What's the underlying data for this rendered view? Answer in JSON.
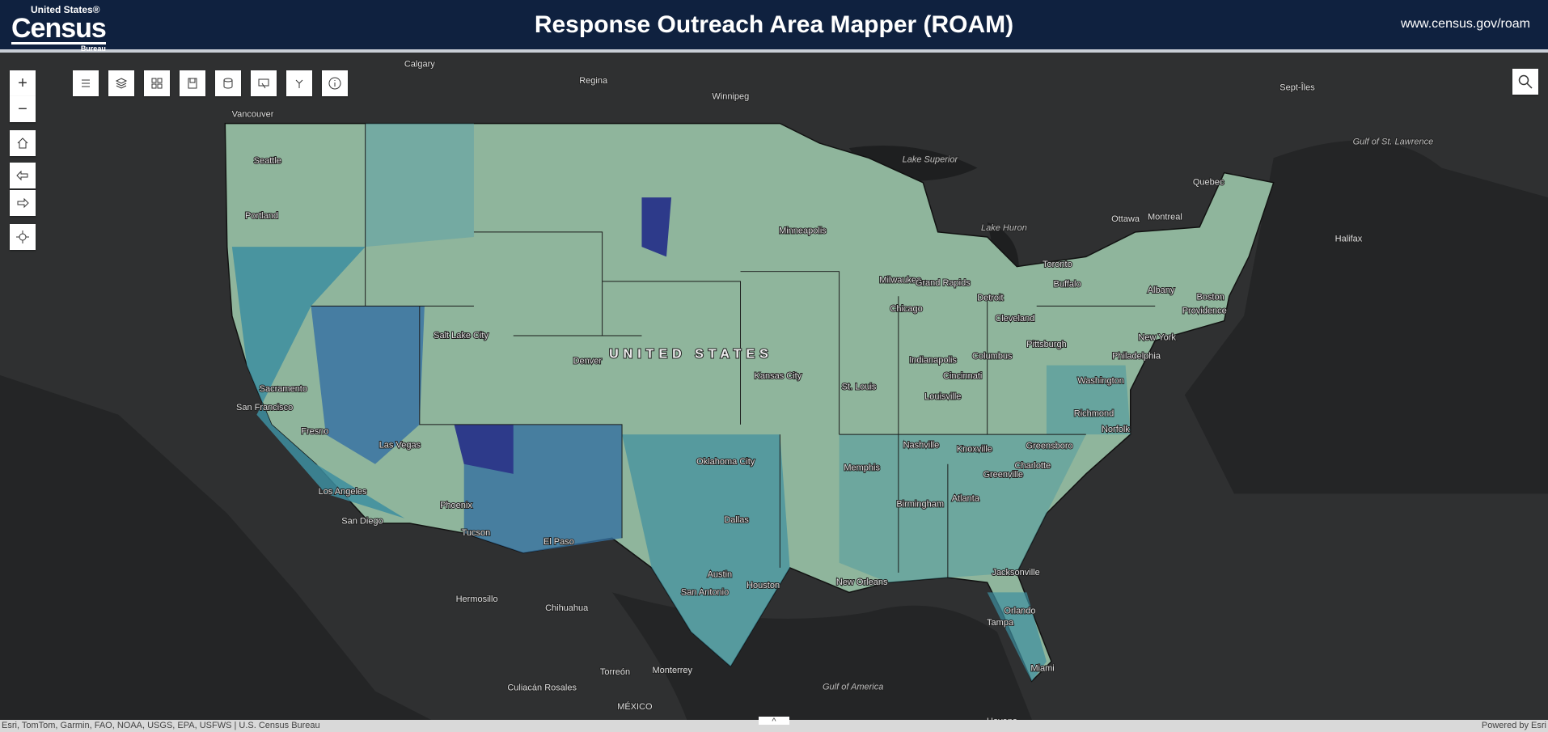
{
  "header": {
    "logo_top": "United States®",
    "logo_main": "Census",
    "logo_bottom": "Bureau",
    "title": "Response Outreach Area Mapper (ROAM)",
    "url": "www.census.gov/roam"
  },
  "controls": {
    "zoom_in": "+",
    "zoom_out": "−"
  },
  "map_labels": [
    "Calgary",
    "Regina",
    "Winnipeg",
    "Vancouver",
    "Seattle",
    "Portland",
    "Sept-Îles",
    "Gulf of St. Lawrence",
    "Lake Superior",
    "Quebec",
    "Ottawa",
    "Montreal",
    "Halifax",
    "Minneapolis",
    "Lake Huron",
    "Toronto",
    "Buffalo",
    "Albany",
    "Boston",
    "Providence",
    "Milwaukee",
    "Grand Rapids",
    "Detroit",
    "Chicago",
    "Cleveland",
    "Salt Lake City",
    "UNITED STATES",
    "New York",
    "Pittsburgh",
    "Philadelphia",
    "Columbus",
    "Indianapolis",
    "Denver",
    "Kansas City",
    "Cincinnati",
    "Washington",
    "Sacramento",
    "St. Louis",
    "Louisville",
    "San Francisco",
    "Richmond",
    "Norfolk",
    "Fresno",
    "Nashville",
    "Knoxville",
    "Greensboro",
    "Las Vegas",
    "Oklahoma City",
    "Memphis",
    "Charlotte",
    "Greenville",
    "Los Angeles",
    "Birmingham",
    "Atlanta",
    "Phoenix",
    "Dallas",
    "San Diego",
    "Tucson",
    "El Paso",
    "Jacksonville",
    "Austin",
    "San Antonio",
    "Houston",
    "New Orleans",
    "Hermosillo",
    "Chihuahua",
    "Tampa",
    "Orlando",
    "Miami",
    "Monterrey",
    "Torreón",
    "Culiacán Rosales",
    "Gulf of America",
    "MÉXICO",
    "Havana"
  ],
  "footer": {
    "attribution": "Esri, TomTom, Garmin, FAO, NOAA, USGS, EPA, USFWS | U.S. Census Bureau",
    "powered": "Powered by Esri"
  }
}
